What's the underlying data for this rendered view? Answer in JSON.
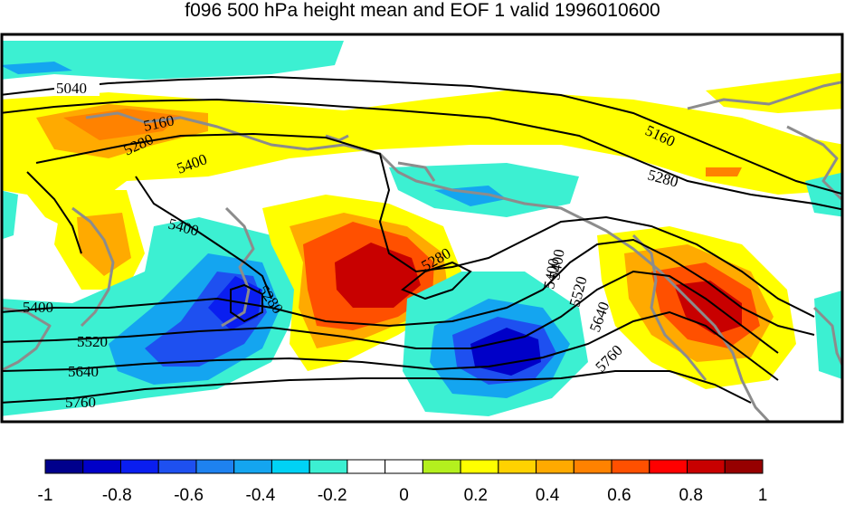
{
  "title": "f096 500 hPa height mean and EOF 1 valid 1996010600",
  "contour_labels": [
    "5040",
    "5160",
    "5280",
    "5400",
    "5400",
    "5160",
    "5280",
    "5400",
    "5280",
    "5280",
    "5400",
    "5520",
    "5640",
    "5760",
    "5400",
    "5520",
    "5640",
    "5760"
  ],
  "colorbar": {
    "colors": [
      "#00008c",
      "#0000c8",
      "#0a1ef0",
      "#1e50f0",
      "#1e82f0",
      "#14a5f0",
      "#00d2f5",
      "#3cf0d2",
      "#ffffff",
      "#ffffff",
      "#b4f01e",
      "#ffff00",
      "#ffd200",
      "#ffaa00",
      "#ff8200",
      "#ff5000",
      "#ff0000",
      "#c80000",
      "#960000"
    ],
    "tick_labels": [
      "-1",
      "-0.8",
      "-0.6",
      "-0.4",
      "-0.2",
      "0",
      "0.2",
      "0.4",
      "0.6",
      "0.8",
      "1"
    ]
  },
  "colors": {
    "coastline": "#8c8c8c",
    "contour": "#000000",
    "frame": "#000000"
  }
}
